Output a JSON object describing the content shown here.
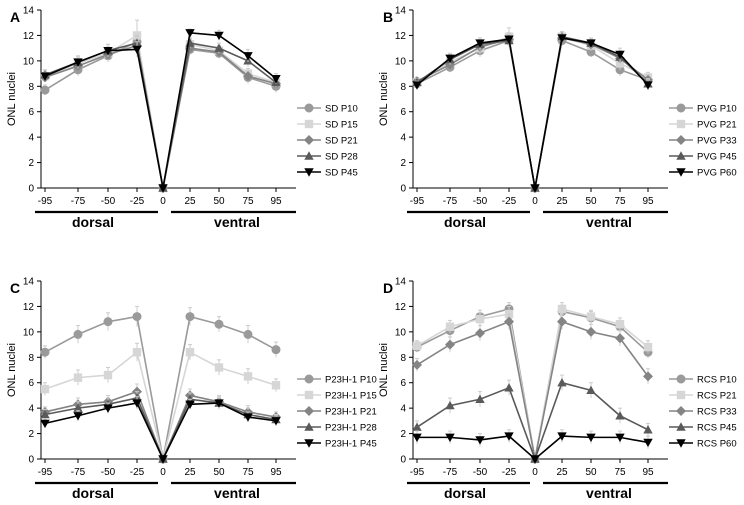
{
  "figure": {
    "x_ticks": [
      "-95",
      "-75",
      "-50",
      "-25",
      "0",
      "25",
      "50",
      "75",
      "95"
    ],
    "y_ticks": [
      "0",
      "2",
      "4",
      "6",
      "8",
      "10",
      "12",
      "14"
    ],
    "ylabel": "ONL nuclei",
    "dorsal_label": "dorsal",
    "ventral_label": "ventral"
  },
  "styles": {
    "series_colors": [
      "#9a9a9a",
      "#d6d6d6",
      "#848484",
      "#5a5a5a",
      "#000000"
    ],
    "series_markers": [
      "circle",
      "square",
      "diamond",
      "triangle-up",
      "triangle-down"
    ],
    "error_bar_color": "#cccccc"
  },
  "chart_data": [
    {
      "type": "line",
      "panel": "A",
      "xlabel": "",
      "ylabel": "ONL nuclei",
      "ylim": [
        0,
        14
      ],
      "x": [
        -95,
        -75,
        -50,
        -25,
        0,
        25,
        50,
        75,
        95
      ],
      "series": [
        {
          "name": "SD P10",
          "values": [
            7.7,
            9.3,
            10.4,
            11.5,
            0,
            10.9,
            10.6,
            8.7,
            8.0
          ],
          "errors": [
            0.4,
            0.5,
            0.5,
            0.6,
            0,
            0.4,
            0.4,
            0.5,
            0.5
          ]
        },
        {
          "name": "SD P15",
          "values": [
            8.8,
            9.8,
            10.6,
            12.0,
            0,
            11.3,
            10.8,
            9.0,
            8.3
          ],
          "errors": [
            0.4,
            0.5,
            0.5,
            1.2,
            0,
            0.4,
            0.4,
            0.4,
            0.4
          ]
        },
        {
          "name": "SD P21",
          "values": [
            8.7,
            9.6,
            10.5,
            11.2,
            0,
            11.0,
            10.7,
            8.8,
            8.2
          ],
          "errors": [
            0.3,
            0.4,
            0.5,
            0.7,
            0,
            0.4,
            0.4,
            0.4,
            0.4
          ]
        },
        {
          "name": "SD P28",
          "values": [
            8.9,
            9.9,
            10.8,
            11.4,
            0,
            11.4,
            11.0,
            10.0,
            8.3
          ],
          "errors": [
            0.4,
            0.5,
            0.5,
            0.6,
            0,
            0.4,
            0.4,
            0.5,
            0.4
          ]
        },
        {
          "name": "SD P45",
          "values": [
            8.8,
            9.9,
            10.8,
            10.9,
            0,
            12.2,
            12.0,
            10.4,
            8.6
          ],
          "errors": [
            0.3,
            0.4,
            0.5,
            0.6,
            0,
            0.3,
            0.4,
            0.5,
            0.4
          ]
        }
      ]
    },
    {
      "type": "line",
      "panel": "B",
      "xlabel": "",
      "ylabel": "ONL nuclei",
      "ylim": [
        0,
        14
      ],
      "x": [
        -95,
        -75,
        -50,
        -25,
        0,
        25,
        50,
        75,
        95
      ],
      "series": [
        {
          "name": "PVG P10",
          "values": [
            8.2,
            9.5,
            10.8,
            11.6,
            0,
            11.6,
            10.7,
            9.3,
            8.5
          ],
          "errors": [
            0.3,
            0.4,
            0.5,
            0.5,
            0,
            0.4,
            0.4,
            0.5,
            0.4
          ]
        },
        {
          "name": "PVG P21",
          "values": [
            8.3,
            9.9,
            11.0,
            11.9,
            0,
            11.9,
            11.2,
            9.8,
            8.7
          ],
          "errors": [
            0.3,
            0.4,
            0.5,
            0.7,
            0,
            0.4,
            0.4,
            0.5,
            0.4
          ]
        },
        {
          "name": "PVG P33",
          "values": [
            8.4,
            9.7,
            11.1,
            11.7,
            0,
            11.8,
            11.3,
            10.2,
            8.5
          ],
          "errors": [
            0.3,
            0.4,
            0.5,
            0.5,
            0,
            0.4,
            0.4,
            0.5,
            0.4
          ]
        },
        {
          "name": "PVG P45",
          "values": [
            8.3,
            10.1,
            11.3,
            11.6,
            0,
            11.9,
            11.4,
            10.3,
            8.2
          ],
          "errors": [
            0.3,
            0.4,
            0.5,
            0.5,
            0,
            0.4,
            0.4,
            0.5,
            0.4
          ]
        },
        {
          "name": "PVG P60",
          "values": [
            8.1,
            10.2,
            11.4,
            11.7,
            0,
            11.8,
            11.4,
            10.5,
            8.1
          ],
          "errors": [
            0.3,
            0.4,
            0.4,
            0.5,
            0,
            0.3,
            0.4,
            0.5,
            0.4
          ]
        }
      ]
    },
    {
      "type": "line",
      "panel": "C",
      "xlabel": "",
      "ylabel": "ONL nuclei",
      "ylim": [
        0,
        14
      ],
      "x": [
        -95,
        -75,
        -50,
        -25,
        0,
        25,
        50,
        75,
        95
      ],
      "series": [
        {
          "name": "P23H-1 P10",
          "values": [
            8.4,
            9.8,
            10.8,
            11.2,
            0,
            11.2,
            10.6,
            9.8,
            8.6
          ],
          "errors": [
            0.5,
            0.7,
            0.7,
            0.8,
            0,
            0.7,
            0.6,
            0.7,
            0.6
          ]
        },
        {
          "name": "P23H-1 P15",
          "values": [
            5.5,
            6.4,
            6.6,
            8.4,
            0,
            8.4,
            7.2,
            6.5,
            5.8
          ],
          "errors": [
            0.5,
            0.6,
            0.6,
            0.7,
            0,
            0.6,
            0.6,
            0.6,
            0.5
          ]
        },
        {
          "name": "P23H-1 P21",
          "values": [
            3.7,
            4.3,
            4.5,
            5.3,
            0,
            5.0,
            4.5,
            3.7,
            3.3
          ],
          "errors": [
            0.4,
            0.5,
            0.5,
            0.6,
            0,
            0.5,
            0.5,
            0.5,
            0.4
          ]
        },
        {
          "name": "P23H-1 P28",
          "values": [
            3.5,
            4.0,
            4.3,
            4.8,
            0,
            4.7,
            4.4,
            3.5,
            3.1
          ],
          "errors": [
            0.4,
            0.5,
            0.5,
            0.5,
            0,
            0.5,
            0.5,
            0.5,
            0.4
          ]
        },
        {
          "name": "P23H-1 P45",
          "values": [
            2.8,
            3.4,
            4.0,
            4.4,
            0,
            4.3,
            4.4,
            3.3,
            3.0
          ],
          "errors": [
            0.3,
            0.4,
            0.4,
            0.5,
            0,
            0.4,
            0.4,
            0.4,
            0.4
          ]
        }
      ]
    },
    {
      "type": "line",
      "panel": "D",
      "xlabel": "",
      "ylabel": "ONL nuclei",
      "ylim": [
        0,
        14
      ],
      "x": [
        -95,
        -75,
        -50,
        -25,
        0,
        25,
        50,
        75,
        95
      ],
      "series": [
        {
          "name": "RCS P10",
          "values": [
            8.8,
            10.1,
            11.2,
            11.8,
            0,
            11.6,
            11.1,
            10.4,
            8.4
          ],
          "errors": [
            0.4,
            0.5,
            0.5,
            0.5,
            0,
            0.5,
            0.5,
            0.5,
            0.5
          ]
        },
        {
          "name": "RCS P21",
          "values": [
            8.9,
            10.4,
            11.0,
            11.4,
            0,
            11.8,
            11.2,
            10.6,
            8.8
          ],
          "errors": [
            0.4,
            0.5,
            0.5,
            0.6,
            0,
            0.5,
            0.5,
            0.5,
            0.5
          ]
        },
        {
          "name": "RCS P33",
          "values": [
            7.4,
            9.0,
            9.9,
            10.8,
            0,
            10.8,
            10.0,
            9.5,
            6.5
          ],
          "errors": [
            0.5,
            0.6,
            0.6,
            0.6,
            0,
            0.6,
            0.6,
            0.6,
            0.6
          ]
        },
        {
          "name": "RCS P45",
          "values": [
            2.5,
            4.2,
            4.7,
            5.6,
            0,
            6.0,
            5.4,
            3.4,
            2.3
          ],
          "errors": [
            0.5,
            0.6,
            0.6,
            0.6,
            0,
            0.6,
            0.6,
            0.6,
            0.5
          ]
        },
        {
          "name": "RCS P60",
          "values": [
            1.7,
            1.7,
            1.5,
            1.8,
            0,
            1.8,
            1.7,
            1.7,
            1.3
          ],
          "errors": [
            0.5,
            0.5,
            0.5,
            0.5,
            0,
            0.5,
            0.5,
            0.5,
            0.5
          ]
        }
      ]
    }
  ]
}
